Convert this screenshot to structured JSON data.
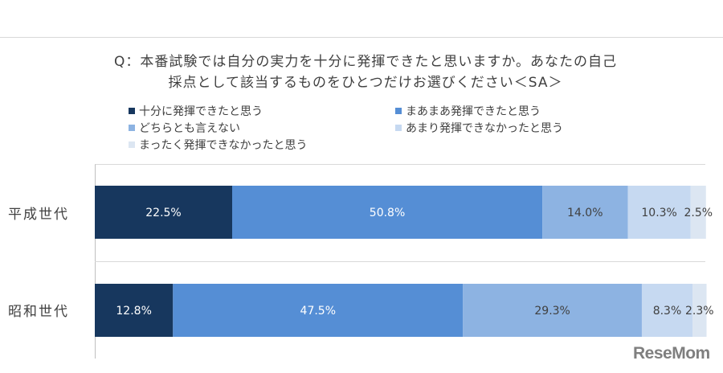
{
  "chart_data": {
    "type": "bar",
    "orientation": "horizontal",
    "stacked": "percent",
    "title_lines": [
      "Q：本番試験では自分の実力を十分に発揮できたと思いますか。あなたの自己",
      "採点として該当するものをひとつだけお選びください＜SA＞"
    ],
    "categories": [
      "平成世代",
      "昭和世代"
    ],
    "series": [
      {
        "name": "十分に発揮できたと思う",
        "color": "#17375e",
        "values": [
          22.5,
          12.8
        ],
        "labels": [
          "22.5%",
          "12.8%"
        ]
      },
      {
        "name": "まあまあ発揮できたと思う",
        "color": "#558ed5",
        "values": [
          50.8,
          47.5
        ],
        "labels": [
          "50.8%",
          "47.5%"
        ]
      },
      {
        "name": "どちらとも言えない",
        "color": "#8db3e2",
        "values": [
          14.0,
          29.3
        ],
        "labels": [
          "14.0%",
          "29.3%"
        ]
      },
      {
        "name": "あまり発揮できなかったと思う",
        "color": "#c6d9f1",
        "values": [
          10.3,
          8.3
        ],
        "labels": [
          "10.3%",
          "8.3%"
        ]
      },
      {
        "name": "まったく発揮できなかったと思う",
        "color": "#dce6f2",
        "values": [
          2.5,
          2.3
        ],
        "labels": [
          "2.5%",
          "2.3%"
        ]
      }
    ],
    "xlim": [
      0,
      100
    ],
    "legend_position": "top",
    "grid": false
  },
  "watermark": "ReseMom"
}
